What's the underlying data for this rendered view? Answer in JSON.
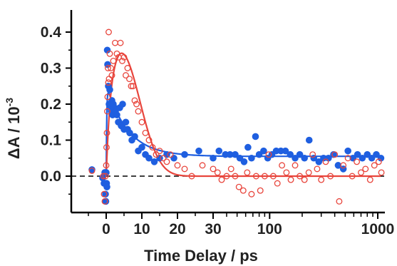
{
  "chart_data": {
    "type": "scatter",
    "title": "",
    "xlabel": "Time Delay / ps",
    "ylabel": "ΔA / 10",
    "ylabel_exponent": "-3",
    "x_scale": "linear below ~30 ps, logarithmic above",
    "xlim": [
      -6,
      1100
    ],
    "ylim": [
      -0.08,
      0.42
    ],
    "x_tick_labels": [
      "0",
      "10",
      "20",
      "30",
      "100",
      "1000"
    ],
    "y_tick_labels": [
      "0.0",
      "0.1",
      "0.2",
      "0.3",
      "0.4"
    ],
    "x_ticks": [
      0,
      10,
      20,
      30,
      100,
      1000
    ],
    "y_ticks": [
      0.0,
      0.1,
      0.2,
      0.3,
      0.4
    ],
    "grid": false,
    "legend": "none",
    "baseline": {
      "y": 0.0,
      "style": "dashed",
      "color": "#000000"
    },
    "series": [
      {
        "marker": "filled-circle",
        "color": "#1f5fe0",
        "points": [
          [
            -4,
            0.018
          ],
          [
            -1,
            -0.005
          ],
          [
            -0.6,
            -0.02
          ],
          [
            -0.4,
            0.01
          ],
          [
            -0.2,
            -0.05
          ],
          [
            -0.1,
            -0.07
          ],
          [
            0,
            0.01
          ],
          [
            0.1,
            -0.02
          ],
          [
            0.2,
            -0.03
          ],
          [
            0.3,
            0.35
          ],
          [
            0.4,
            0.31
          ],
          [
            0.6,
            0.25
          ],
          [
            0.8,
            0.2
          ],
          [
            1,
            0.24
          ],
          [
            1.2,
            0.19
          ],
          [
            1.4,
            0.18
          ],
          [
            1.6,
            0.21
          ],
          [
            1.8,
            0.17
          ],
          [
            2,
            0.2
          ],
          [
            2.3,
            0.19
          ],
          [
            2.6,
            0.18
          ],
          [
            3,
            0.17
          ],
          [
            3.4,
            0.15
          ],
          [
            3.8,
            0.19
          ],
          [
            4.2,
            0.14
          ],
          [
            4.6,
            0.2
          ],
          [
            5,
            0.13
          ],
          [
            5.5,
            0.15
          ],
          [
            6,
            0.13
          ],
          [
            6.6,
            0.12
          ],
          [
            7.2,
            0.1
          ],
          [
            8,
            0.11
          ],
          [
            9,
            0.07
          ],
          [
            10,
            0.08
          ],
          [
            11,
            0.06
          ],
          [
            12,
            0.05
          ],
          [
            13.5,
            0.04
          ],
          [
            15,
            0.05
          ],
          [
            17,
            0.06
          ],
          [
            19,
            0.05
          ],
          [
            22,
            0.06
          ],
          [
            26,
            0.07
          ],
          [
            30,
            0.05
          ],
          [
            34,
            0.07
          ],
          [
            39,
            0.06
          ],
          [
            43,
            0.06
          ],
          [
            48,
            0.06
          ],
          [
            53,
            0.05
          ],
          [
            58,
            0.04
          ],
          [
            63,
            0.08
          ],
          [
            68,
            0.05
          ],
          [
            74,
            0.11
          ],
          [
            80,
            0.06
          ],
          [
            88,
            0.07
          ],
          [
            96,
            0.05
          ],
          [
            105,
            0.06
          ],
          [
            115,
            0.07
          ],
          [
            127,
            0.07
          ],
          [
            140,
            0.07
          ],
          [
            155,
            0.06
          ],
          [
            172,
            0.05
          ],
          [
            190,
            0.06
          ],
          [
            210,
            0.05
          ],
          [
            232,
            0.1
          ],
          [
            256,
            0.05
          ],
          [
            285,
            0.04
          ],
          [
            315,
            0.05
          ],
          [
            350,
            0.05
          ],
          [
            390,
            0.06
          ],
          [
            430,
            0.03
          ],
          [
            480,
            0.02
          ],
          [
            530,
            0.07
          ],
          [
            590,
            0.05
          ],
          [
            650,
            0.06
          ],
          [
            720,
            0.05
          ],
          [
            800,
            0.06
          ],
          [
            880,
            0.05
          ],
          [
            970,
            0.06
          ],
          [
            1070,
            0.05
          ]
        ]
      },
      {
        "marker": "open-circle",
        "color": "#e8453c",
        "points": [
          [
            -4,
            0.015
          ],
          [
            -0.8,
            0.0
          ],
          [
            -0.6,
            -0.05
          ],
          [
            -0.4,
            -0.07
          ],
          [
            -0.2,
            0.0
          ],
          [
            0,
            0.03
          ],
          [
            0.1,
            0.08
          ],
          [
            0.2,
            0.12
          ],
          [
            0.3,
            0.18
          ],
          [
            0.4,
            0.22
          ],
          [
            0.5,
            0.3
          ],
          [
            0.6,
            0.26
          ],
          [
            0.7,
            0.4
          ],
          [
            0.8,
            0.27
          ],
          [
            1,
            0.34
          ],
          [
            1.3,
            0.3
          ],
          [
            1.6,
            0.28
          ],
          [
            2,
            0.32
          ],
          [
            2.5,
            0.37
          ],
          [
            3,
            0.34
          ],
          [
            3.5,
            0.33
          ],
          [
            4,
            0.37
          ],
          [
            4.5,
            0.32
          ],
          [
            5,
            0.33
          ],
          [
            5.5,
            0.28
          ],
          [
            6,
            0.3
          ],
          [
            6.5,
            0.27
          ],
          [
            7,
            0.25
          ],
          [
            7.5,
            0.25
          ],
          [
            8,
            0.21
          ],
          [
            8.5,
            0.2
          ],
          [
            9,
            0.18
          ],
          [
            10,
            0.15
          ],
          [
            11,
            0.12
          ],
          [
            12,
            0.1
          ],
          [
            13,
            0.08
          ],
          [
            14,
            0.06
          ],
          [
            15,
            0.07
          ],
          [
            16,
            0.05
          ],
          [
            17,
            0.04
          ],
          [
            18,
            0.06
          ],
          [
            20,
            0.03
          ],
          [
            22,
            0.02
          ],
          [
            24,
            0.0
          ],
          [
            27,
            0.03
          ],
          [
            30,
            0.02
          ],
          [
            33,
            0.01
          ],
          [
            36,
            -0.01
          ],
          [
            40,
            0.0
          ],
          [
            44,
            0.02
          ],
          [
            48,
            0.0
          ],
          [
            52,
            -0.03
          ],
          [
            57,
            -0.04
          ],
          [
            62,
            0.01
          ],
          [
            68,
            -0.05
          ],
          [
            75,
            0.0
          ],
          [
            82,
            -0.04
          ],
          [
            90,
            0.0
          ],
          [
            98,
            0.06
          ],
          [
            108,
            0.0
          ],
          [
            118,
            -0.02
          ],
          [
            130,
            0.03
          ],
          [
            143,
            0.01
          ],
          [
            157,
            -0.01
          ],
          [
            172,
            0.03
          ],
          [
            190,
            0.0
          ],
          [
            210,
            -0.01
          ],
          [
            230,
            0.01
          ],
          [
            250,
            0.06
          ],
          [
            275,
            0.02
          ],
          [
            300,
            -0.01
          ],
          [
            330,
            0.04
          ],
          [
            365,
            0.0
          ],
          [
            400,
            0.06
          ],
          [
            440,
            -0.07
          ],
          [
            480,
            0.03
          ],
          [
            530,
            0.05
          ],
          [
            580,
            0.0
          ],
          [
            640,
            0.04
          ],
          [
            700,
            0.01
          ],
          [
            770,
            0.02
          ],
          [
            850,
            -0.01
          ],
          [
            930,
            0.03
          ],
          [
            1020,
            0.04
          ],
          [
            1080,
            0.01
          ]
        ]
      }
    ],
    "fit_curves": [
      {
        "color": "#1f5fe0",
        "shape": "rise ~0.25 at t≈0.3 ps, fast decay (τ≈6 ps) to plateau",
        "plateau": 0.055,
        "peak": 0.25,
        "tau": 6
      },
      {
        "color": "#e8453c",
        "shape": "rise to ~0.34 at t≈4 ps then decay (τ≈5 ps) to ~0",
        "plateau": 0.0,
        "peak": 0.335,
        "tau": 5
      }
    ]
  }
}
